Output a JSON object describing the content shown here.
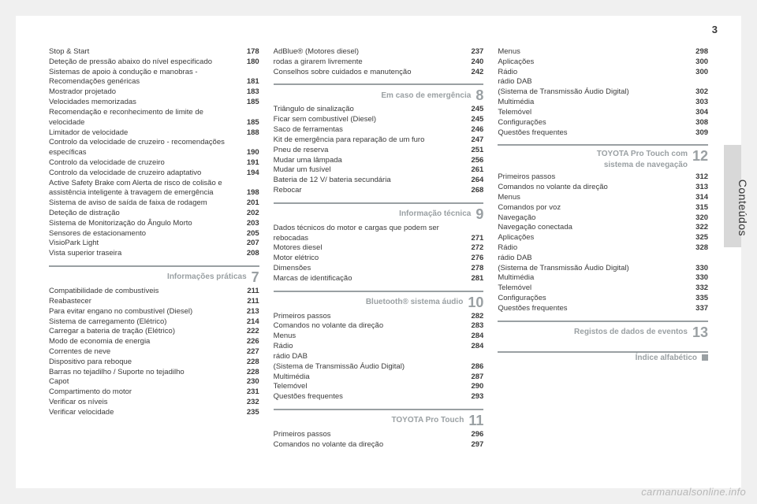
{
  "page_number": "3",
  "side_label": "Conteúdos",
  "watermark": "carmanualsonline.info",
  "columns": [
    {
      "items": [
        {
          "type": "entry",
          "label": "Stop & Start",
          "page": "178"
        },
        {
          "type": "entry",
          "label": "Deteção de pressão abaixo do nível especificado",
          "page": "180"
        },
        {
          "type": "entry",
          "label": "Sistemas de apoio à condução e manobras - Recomendações genéricas",
          "page": "181"
        },
        {
          "type": "entry",
          "label": "Mostrador projetado",
          "page": "183"
        },
        {
          "type": "entry",
          "label": "Velocidades memorizadas",
          "page": "185"
        },
        {
          "type": "entry",
          "label": "Recomendação e reconhecimento de limite de velocidade",
          "page": "185"
        },
        {
          "type": "entry",
          "label": "Limitador de velocidade",
          "page": "188"
        },
        {
          "type": "entry",
          "label": "Controlo da velocidade de cruzeiro - recomendações específicas",
          "page": "190"
        },
        {
          "type": "entry",
          "label": "Controlo da velocidade de cruzeiro",
          "page": "191"
        },
        {
          "type": "entry",
          "label": "Controlo da velocidade de cruzeiro adaptativo",
          "page": "194"
        },
        {
          "type": "entry",
          "label": "Active Safety Brake com Alerta de risco de colisão e assistência inteligente à travagem de emergência",
          "page": "198"
        },
        {
          "type": "entry",
          "label": "Sistema de aviso de saída de faixa de rodagem",
          "page": "201"
        },
        {
          "type": "entry",
          "label": "Deteção de distração",
          "page": "202"
        },
        {
          "type": "entry",
          "label": "Sistema de Monitorização do Ângulo Morto",
          "page": "203"
        },
        {
          "type": "entry",
          "label": "Sensores de estacionamento",
          "page": "205"
        },
        {
          "type": "entry",
          "label": "VisioPark Light",
          "page": "207"
        },
        {
          "type": "entry",
          "label": "Vista superior traseira",
          "page": "208"
        },
        {
          "type": "section",
          "title": "Informações práticas",
          "num": "7"
        },
        {
          "type": "entry",
          "label": "Compatibilidade de combustíveis",
          "page": "211"
        },
        {
          "type": "entry",
          "label": "Reabastecer",
          "page": "211"
        },
        {
          "type": "entry",
          "label": "Para evitar engano no combustível (Diesel)",
          "page": "213"
        },
        {
          "type": "entry",
          "label": "Sistema de carregamento (Elétrico)",
          "page": "214"
        },
        {
          "type": "entry",
          "label": "Carregar a bateria de tração (Elétrico)",
          "page": "222"
        },
        {
          "type": "entry",
          "label": "Modo de economia de energia",
          "page": "226"
        },
        {
          "type": "entry",
          "label": "Correntes de neve",
          "page": "227"
        },
        {
          "type": "entry",
          "label": "Dispositivo para reboque",
          "page": "228"
        },
        {
          "type": "entry",
          "label": "Barras no tejadilho / Suporte no tejadilho",
          "page": "228"
        },
        {
          "type": "entry",
          "label": "Capot",
          "page": "230"
        },
        {
          "type": "entry",
          "label": "Compartimento do motor",
          "page": "231"
        },
        {
          "type": "entry",
          "label": "Verificar os níveis",
          "page": "232"
        },
        {
          "type": "entry",
          "label": "Verificar velocidade",
          "page": "235"
        }
      ]
    },
    {
      "items": [
        {
          "type": "entry",
          "label": "AdBlue® (Motores diesel)",
          "page": "237"
        },
        {
          "type": "entry",
          "label": "rodas a girarem livremente",
          "page": "240"
        },
        {
          "type": "entry",
          "label": "Conselhos sobre cuidados e manutenção",
          "page": "242"
        },
        {
          "type": "section",
          "title": "Em caso de emergência",
          "num": "8"
        },
        {
          "type": "entry",
          "label": "Triângulo de sinalização",
          "page": "245"
        },
        {
          "type": "entry",
          "label": "Ficar sem combustível (Diesel)",
          "page": "245"
        },
        {
          "type": "entry",
          "label": "Saco de ferramentas",
          "page": "246"
        },
        {
          "type": "entry",
          "label": "Kit de emergência para reparação de um furo",
          "page": "247"
        },
        {
          "type": "entry",
          "label": "Pneu de reserva",
          "page": "251"
        },
        {
          "type": "entry",
          "label": "Mudar uma lâmpada",
          "page": "256"
        },
        {
          "type": "entry",
          "label": "Mudar um fusível",
          "page": "261"
        },
        {
          "type": "entry",
          "label": " Bateria de 12 V/ bateria secundária",
          "page": "264"
        },
        {
          "type": "entry",
          "label": "Rebocar",
          "page": "268"
        },
        {
          "type": "section",
          "title": "Informação técnica",
          "num": "9"
        },
        {
          "type": "entry",
          "label": "Dados técnicos do motor e cargas que podem ser rebocadas",
          "page": "271"
        },
        {
          "type": "entry",
          "label": "Motores diesel",
          "page": "272"
        },
        {
          "type": "entry",
          "label": "Motor elétrico",
          "page": "276"
        },
        {
          "type": "entry",
          "label": "Dimensões",
          "page": "278"
        },
        {
          "type": "entry",
          "label": "Marcas de identificação",
          "page": "281"
        },
        {
          "type": "section",
          "title": "Bluetooth® sistema áudio",
          "num": "10"
        },
        {
          "type": "entry",
          "label": "Primeiros passos",
          "page": "282"
        },
        {
          "type": "entry",
          "label": "Comandos no volante da direção",
          "page": "283"
        },
        {
          "type": "entry",
          "label": "Menus",
          "page": "284"
        },
        {
          "type": "entry",
          "label": "Rádio",
          "page": "284"
        },
        {
          "type": "entry",
          "label": "rádio DAB\n(Sistema de Transmissão Áudio Digital)",
          "page": "286"
        },
        {
          "type": "entry",
          "label": "Multimédia",
          "page": "287"
        },
        {
          "type": "entry",
          "label": "Telemóvel",
          "page": "290"
        },
        {
          "type": "entry",
          "label": "Questões frequentes",
          "page": "293"
        },
        {
          "type": "section",
          "title": "TOYOTA Pro Touch",
          "num": "11"
        },
        {
          "type": "entry",
          "label": "Primeiros passos",
          "page": "296"
        },
        {
          "type": "entry",
          "label": "Comandos no volante da direção",
          "page": "297"
        }
      ]
    },
    {
      "items": [
        {
          "type": "entry",
          "label": "Menus",
          "page": "298"
        },
        {
          "type": "entry",
          "label": "Aplicações",
          "page": "300"
        },
        {
          "type": "entry",
          "label": "Rádio",
          "page": "300"
        },
        {
          "type": "entry",
          "label": "rádio DAB\n(Sistema de Transmissão Áudio Digital)",
          "page": "302"
        },
        {
          "type": "entry",
          "label": "Multimédia",
          "page": "303"
        },
        {
          "type": "entry",
          "label": "Telemóvel",
          "page": "304"
        },
        {
          "type": "entry",
          "label": "Configurações",
          "page": "308"
        },
        {
          "type": "entry",
          "label": "Questões frequentes",
          "page": "309"
        },
        {
          "type": "section2",
          "title": "TOYOTA Pro Touch com",
          "subtitle": "sistema de navegação",
          "num": "12"
        },
        {
          "type": "entry",
          "label": "Primeiros passos",
          "page": "312"
        },
        {
          "type": "entry",
          "label": "Comandos no volante da direção",
          "page": "313"
        },
        {
          "type": "entry",
          "label": "Menus",
          "page": "314"
        },
        {
          "type": "entry",
          "label": "Comandos por voz",
          "page": "315"
        },
        {
          "type": "entry",
          "label": "Navegação",
          "page": "320"
        },
        {
          "type": "entry",
          "label": "Navegação conectada",
          "page": "322"
        },
        {
          "type": "entry",
          "label": "Aplicações",
          "page": "325"
        },
        {
          "type": "entry",
          "label": "Rádio",
          "page": "328"
        },
        {
          "type": "entry",
          "label": "rádio DAB\n(Sistema de Transmissão Áudio Digital)",
          "page": "330"
        },
        {
          "type": "entry",
          "label": "Multimédia",
          "page": "330"
        },
        {
          "type": "entry",
          "label": "Telemóvel",
          "page": "332"
        },
        {
          "type": "entry",
          "label": "Configurações",
          "page": "335"
        },
        {
          "type": "entry",
          "label": "Questões frequentes",
          "page": "337"
        },
        {
          "type": "section",
          "title": "Registos de dados de eventos",
          "num": "13"
        },
        {
          "type": "index",
          "title": "Índice alfabético"
        }
      ]
    }
  ]
}
